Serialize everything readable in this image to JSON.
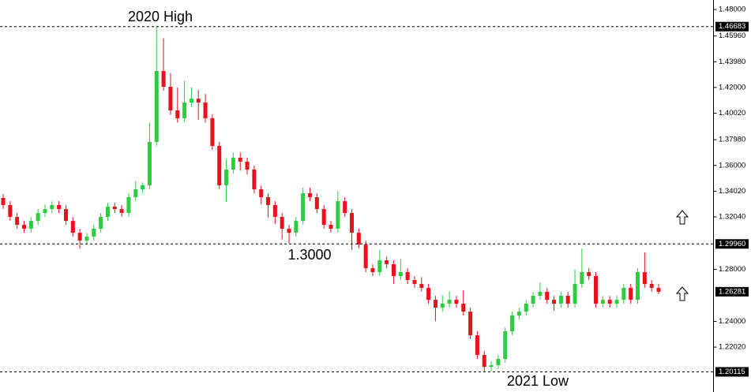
{
  "chart_data": {
    "type": "candlestick",
    "up_color": "#2ecc40",
    "down_color": "#e8111c",
    "ylim": [
      1.1899,
      1.4873
    ],
    "yticks": [
      {
        "value": 1.48,
        "label": "1.48000"
      },
      {
        "value": 1.4596,
        "label": "1.45960"
      },
      {
        "value": 1.4398,
        "label": "1.43980"
      },
      {
        "value": 1.42,
        "label": "1.42000"
      },
      {
        "value": 1.4002,
        "label": "1.40020"
      },
      {
        "value": 1.3798,
        "label": "1.37980"
      },
      {
        "value": 1.36,
        "label": "1.36000"
      },
      {
        "value": 1.3402,
        "label": "1.34020"
      },
      {
        "value": 1.3204,
        "label": "1.32040"
      },
      {
        "value": 1.28,
        "label": "1.28000"
      },
      {
        "value": 1.24,
        "label": "1.24000"
      },
      {
        "value": 1.2202,
        "label": "1.22020"
      }
    ],
    "levels": [
      {
        "value": 1.46683,
        "label": "1.46683",
        "dashed": true
      },
      {
        "value": 1.2996,
        "label": "1.29960",
        "dashed": true
      },
      {
        "value": 1.26281,
        "label": "1.26281",
        "dashed": false
      },
      {
        "value": 1.20115,
        "label": "1.20115",
        "dashed": true
      }
    ],
    "annotations": [
      "2020 High",
      "1.3000",
      "2021 Low"
    ],
    "open": [
      1.335,
      1.3295,
      1.3204,
      1.3143,
      1.3113,
      1.3173,
      1.3234,
      1.3264,
      1.3295,
      1.3264,
      1.3173,
      1.3082,
      1.3022,
      1.3052,
      1.3113,
      1.3204,
      1.3283,
      1.3264,
      1.3234,
      1.3356,
      1.3416,
      1.3447,
      1.378,
      1.4327,
      1.4205,
      1.4023,
      1.3963,
      1.4084,
      1.4114,
      1.4084,
      1.3963,
      1.375,
      1.3447,
      1.3568,
      1.3659,
      1.3629,
      1.3568,
      1.3416,
      1.3356,
      1.3295,
      1.3204,
      1.3113,
      1.3082,
      1.3173,
      1.3386,
      1.3356,
      1.3264,
      1.3143,
      1.3113,
      1.3325,
      1.3234,
      1.3082,
      1.2991,
      1.2809,
      1.2779,
      1.287,
      1.284,
      1.2749,
      1.2779,
      1.2718,
      1.2688,
      1.2658,
      1.2566,
      1.2506,
      1.2536,
      1.2566,
      1.2536,
      1.2475,
      1.2293,
      1.2142,
      1.205,
      1.2063,
      1.2111,
      1.2324,
      1.2445,
      1.2475,
      1.2536,
      1.2597,
      1.2627,
      1.2566,
      1.2536,
      1.2597,
      1.2536,
      1.2688,
      1.2779,
      1.2749,
      1.2536,
      1.2566,
      1.2536,
      1.2566,
      1.2658,
      1.2566,
      1.2779,
      1.2688,
      1.2658
    ],
    "high": [
      1.338,
      1.3325,
      1.3234,
      1.3173,
      1.3203,
      1.3264,
      1.33,
      1.3325,
      1.3325,
      1.3294,
      1.3203,
      1.3112,
      1.3082,
      1.3143,
      1.3234,
      1.3313,
      1.3313,
      1.3294,
      1.3386,
      1.348,
      1.347,
      1.393,
      1.46683,
      1.458,
      1.431,
      1.42,
      1.425,
      1.42,
      1.418,
      1.415,
      1.3993,
      1.378,
      1.365,
      1.37,
      1.37,
      1.3659,
      1.3598,
      1.3446,
      1.3386,
      1.3325,
      1.3234,
      1.3143,
      1.3203,
      1.343,
      1.343,
      1.3386,
      1.3294,
      1.3173,
      1.34,
      1.3355,
      1.3264,
      1.3112,
      1.3021,
      1.2839,
      1.295,
      1.29,
      1.287,
      1.288,
      1.2809,
      1.2748,
      1.274,
      1.2688,
      1.2596,
      1.26,
      1.263,
      1.2596,
      1.264,
      1.2505,
      1.2323,
      1.2172,
      1.2093,
      1.2141,
      1.2354,
      1.2475,
      1.2505,
      1.2566,
      1.2627,
      1.27,
      1.2657,
      1.2596,
      1.2627,
      1.2627,
      1.28,
      1.296,
      1.2809,
      1.2779,
      1.2596,
      1.2596,
      1.2596,
      1.2688,
      1.2688,
      1.2809,
      1.293,
      1.2718,
      1.2688
    ],
    "low": [
      1.3265,
      1.3174,
      1.3113,
      1.3083,
      1.3083,
      1.3143,
      1.3204,
      1.3234,
      1.3234,
      1.3143,
      1.3052,
      1.296,
      1.2992,
      1.3022,
      1.3083,
      1.3174,
      1.3234,
      1.3204,
      1.3204,
      1.3326,
      1.3386,
      1.3417,
      1.375,
      1.4175,
      1.399,
      1.393,
      1.3933,
      1.405,
      1.395,
      1.393,
      1.372,
      1.3417,
      1.332,
      1.3538,
      1.356,
      1.353,
      1.3386,
      1.33,
      1.32,
      1.315,
      1.303,
      1.3,
      1.3052,
      1.3143,
      1.3326,
      1.3234,
      1.3113,
      1.3083,
      1.3083,
      1.3204,
      1.295,
      1.2961,
      1.2779,
      1.2749,
      1.2749,
      1.281,
      1.269,
      1.2719,
      1.2688,
      1.2658,
      1.2628,
      1.2536,
      1.24,
      1.2476,
      1.2506,
      1.2506,
      1.2445,
      1.2263,
      1.2112,
      1.20115,
      1.202,
      1.2033,
      1.2081,
      1.2294,
      1.2415,
      1.2445,
      1.2506,
      1.2567,
      1.2536,
      1.248,
      1.2506,
      1.2506,
      1.2506,
      1.2658,
      1.2719,
      1.2506,
      1.2506,
      1.2506,
      1.2506,
      1.2536,
      1.2536,
      1.2536,
      1.2658,
      1.2628,
      1.261
    ],
    "close": [
      1.3295,
      1.3204,
      1.3143,
      1.3113,
      1.3173,
      1.3234,
      1.3264,
      1.3295,
      1.3264,
      1.3173,
      1.3082,
      1.3022,
      1.3052,
      1.3113,
      1.3204,
      1.3283,
      1.3264,
      1.3234,
      1.3356,
      1.3416,
      1.3447,
      1.378,
      1.4327,
      1.4205,
      1.4023,
      1.3963,
      1.4084,
      1.4114,
      1.4084,
      1.3963,
      1.375,
      1.3447,
      1.3568,
      1.3659,
      1.3629,
      1.3568,
      1.3416,
      1.3356,
      1.3295,
      1.3204,
      1.3113,
      1.3082,
      1.3173,
      1.3386,
      1.3356,
      1.3264,
      1.3143,
      1.3113,
      1.3325,
      1.3234,
      1.3082,
      1.2991,
      1.2809,
      1.2779,
      1.287,
      1.284,
      1.2749,
      1.2779,
      1.2718,
      1.2688,
      1.2658,
      1.2566,
      1.2506,
      1.2536,
      1.2566,
      1.2536,
      1.2475,
      1.2293,
      1.2142,
      1.205,
      1.2063,
      1.2111,
      1.2324,
      1.2445,
      1.2475,
      1.2536,
      1.2597,
      1.2627,
      1.2566,
      1.2536,
      1.2597,
      1.2536,
      1.2688,
      1.2779,
      1.2749,
      1.2536,
      1.2566,
      1.2536,
      1.2566,
      1.2658,
      1.2566,
      1.2779,
      1.2688,
      1.2658,
      1.2628
    ]
  }
}
